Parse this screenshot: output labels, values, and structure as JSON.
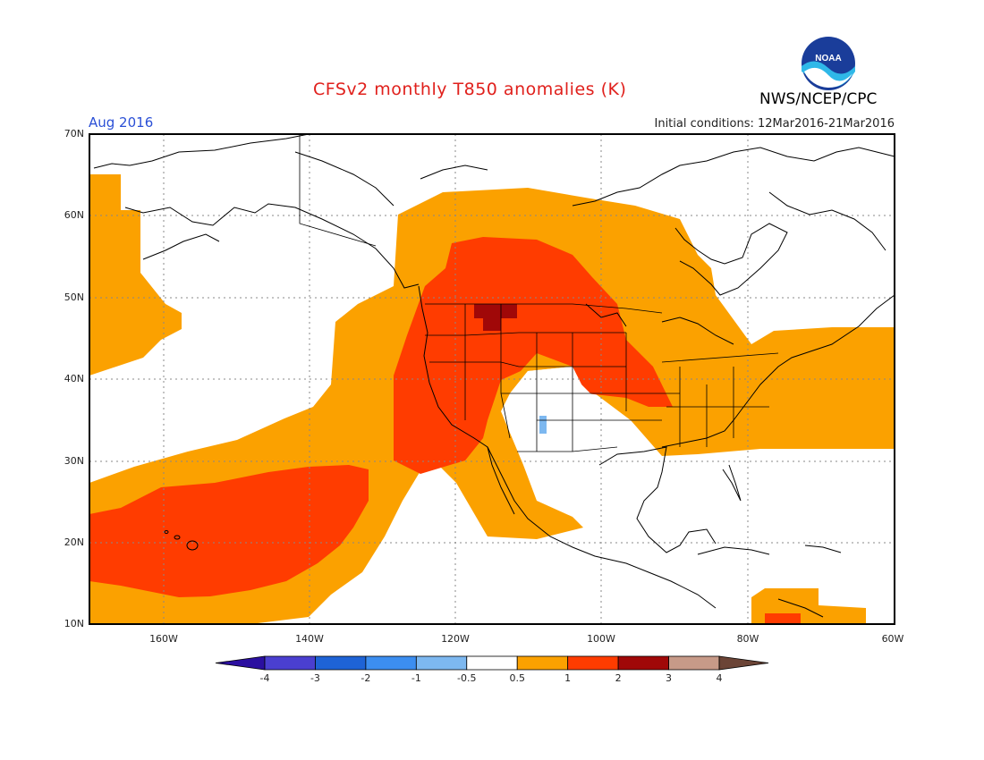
{
  "header": {
    "title": "CFSv2 monthly T850 anomalies (K)",
    "org": "NWS/NCEP/CPC",
    "period": "Aug 2016",
    "initial_conditions": "Initial conditions: 12Mar2016-21Mar2016",
    "logo_text": "NOAA"
  },
  "axes": {
    "lat_ticks": [
      "70N",
      "60N",
      "50N",
      "40N",
      "30N",
      "20N",
      "10N"
    ],
    "lon_ticks": [
      "160W",
      "140W",
      "120W",
      "100W",
      "80W",
      "60W"
    ]
  },
  "colorbar": {
    "labels": [
      "-4",
      "-3",
      "-2",
      "-1",
      "-0.5",
      "0.5",
      "1",
      "2",
      "3",
      "4"
    ],
    "colors": [
      "#2b0fa0",
      "#4a3fd0",
      "#1e63d6",
      "#3c8ef0",
      "#7db8f0",
      "#ffffff",
      "#fba100",
      "#ff3c00",
      "#a00808",
      "#c79a88",
      "#6b4436"
    ]
  },
  "map_colors": {
    "ge_0_5": "#fba100",
    "ge_1": "#ff3c00",
    "ge_2": "#a00808",
    "le_neg_0_5": "#7db8f0"
  }
}
